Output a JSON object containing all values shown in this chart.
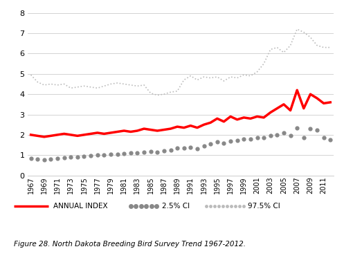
{
  "years": [
    1967,
    1968,
    1969,
    1970,
    1971,
    1972,
    1973,
    1974,
    1975,
    1976,
    1977,
    1978,
    1979,
    1980,
    1981,
    1982,
    1983,
    1984,
    1985,
    1986,
    1987,
    1988,
    1989,
    1990,
    1991,
    1992,
    1993,
    1994,
    1995,
    1996,
    1997,
    1998,
    1999,
    2000,
    2001,
    2002,
    2003,
    2004,
    2005,
    2006,
    2007,
    2008,
    2009,
    2010,
    2011,
    2012
  ],
  "annual_index": [
    2.0,
    1.95,
    1.9,
    1.95,
    2.0,
    2.05,
    2.0,
    1.95,
    2.0,
    2.05,
    2.1,
    2.05,
    2.1,
    2.15,
    2.2,
    2.15,
    2.2,
    2.3,
    2.25,
    2.2,
    2.25,
    2.3,
    2.4,
    2.35,
    2.45,
    2.35,
    2.5,
    2.6,
    2.8,
    2.65,
    2.9,
    2.75,
    2.85,
    2.8,
    2.9,
    2.85,
    3.1,
    3.3,
    3.5,
    3.2,
    4.2,
    3.3,
    4.0,
    3.8,
    3.55,
    3.6
  ],
  "ci_low": [
    0.85,
    0.8,
    0.78,
    0.82,
    0.85,
    0.88,
    0.9,
    0.92,
    0.95,
    0.98,
    1.0,
    1.02,
    1.05,
    1.05,
    1.08,
    1.1,
    1.12,
    1.15,
    1.18,
    1.15,
    1.2,
    1.25,
    1.35,
    1.35,
    1.38,
    1.32,
    1.45,
    1.55,
    1.65,
    1.6,
    1.7,
    1.72,
    1.8,
    1.78,
    1.85,
    1.85,
    1.95,
    2.0,
    2.1,
    1.95,
    2.35,
    1.85,
    2.3,
    2.25,
    1.85,
    1.75
  ],
  "ci_high": [
    4.95,
    4.6,
    4.45,
    4.5,
    4.45,
    4.5,
    4.3,
    4.35,
    4.4,
    4.35,
    4.3,
    4.4,
    4.5,
    4.55,
    4.5,
    4.45,
    4.4,
    4.45,
    4.05,
    3.95,
    4.0,
    4.1,
    4.15,
    4.7,
    4.9,
    4.7,
    4.85,
    4.8,
    4.85,
    4.65,
    4.85,
    4.8,
    4.95,
    4.9,
    5.1,
    5.5,
    6.2,
    6.3,
    6.05,
    6.4,
    7.2,
    7.05,
    6.8,
    6.4,
    6.3,
    6.3
  ],
  "caption": "Figure 28. North Dakota Breeding Bird Survey Trend 1967-2012.",
  "ylim": [
    0,
    8
  ],
  "yticks": [
    0,
    1,
    2,
    3,
    4,
    5,
    6,
    7,
    8
  ],
  "annual_color": "#FF0000",
  "ci_low_color": "#888888",
  "ci_high_color": "#BBBBBB",
  "background_color": "#FFFFFF",
  "legend_annual": "ANNUAL INDEX",
  "legend_low": "2.5% CI",
  "legend_high": "97.5% CI"
}
